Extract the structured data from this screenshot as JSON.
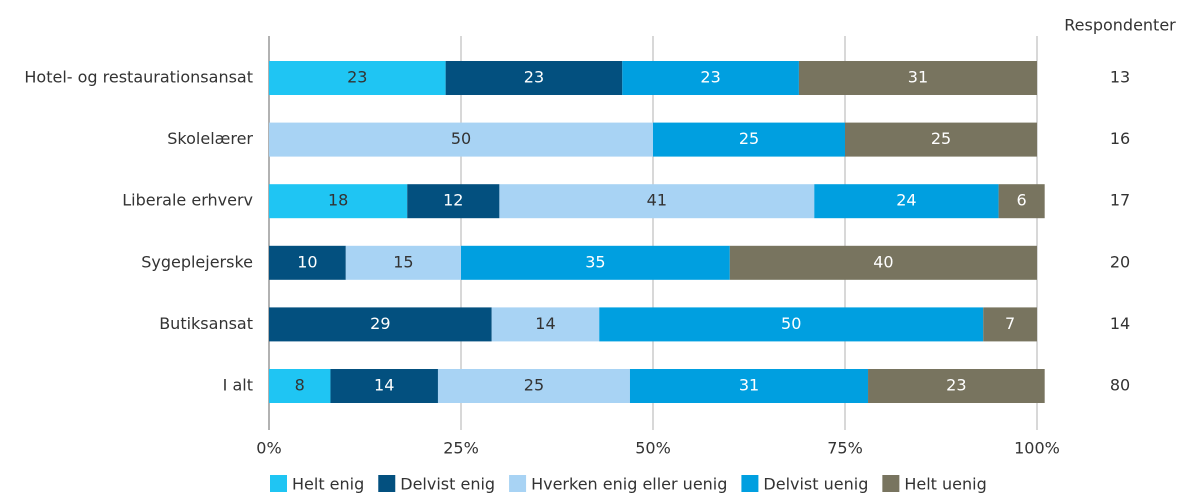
{
  "chart_data": {
    "type": "stacked-bar-horizontal",
    "categories": [
      "Hotel- og restaurationsansat",
      "Skolelærer",
      "Liberale erhverv",
      "Sygeplejerske",
      "Butiksansat",
      "I alt"
    ],
    "series": [
      {
        "name": "Helt enig",
        "color": "#1fc5f3",
        "values": [
          23,
          null,
          18,
          null,
          null,
          8
        ]
      },
      {
        "name": "Delvist enig",
        "color": "#03507f",
        "values": [
          23,
          null,
          12,
          10,
          29,
          14
        ]
      },
      {
        "name": "Hverken enig eller uenig",
        "color": "#a8d3f4",
        "values": [
          null,
          50,
          41,
          15,
          14,
          25
        ]
      },
      {
        "name": "Delvist uenig",
        "color": "#009fe0",
        "values": [
          23,
          25,
          24,
          35,
          50,
          31
        ]
      },
      {
        "name": "Helt uenig",
        "color": "#78745f",
        "values": [
          31,
          25,
          6,
          40,
          7,
          23
        ]
      }
    ],
    "respondents_label": "Respondenter",
    "respondents": [
      13,
      16,
      17,
      20,
      14,
      80
    ],
    "xlim": [
      0,
      100
    ],
    "xticks": [
      {
        "value": 0,
        "label": "0%"
      },
      {
        "value": 25,
        "label": "25%"
      },
      {
        "value": 50,
        "label": "50%"
      },
      {
        "value": 75,
        "label": "75%"
      },
      {
        "value": 100,
        "label": "100%"
      }
    ],
    "grid": true,
    "legend": "bottom"
  }
}
